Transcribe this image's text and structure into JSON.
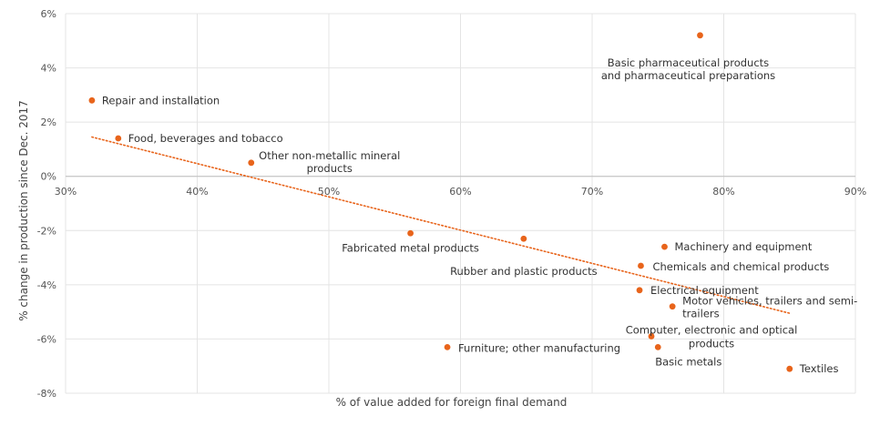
{
  "chart_data": {
    "type": "scatter",
    "xlabel": "% of value added  for foreign final demand",
    "ylabel": "% change in production since Dec. 2017",
    "xlim": [
      0.3,
      0.9
    ],
    "ylim": [
      -0.08,
      0.06
    ],
    "x_ticks": [
      0.3,
      0.4,
      0.5,
      0.6,
      0.7,
      0.8,
      0.9
    ],
    "x_tick_labels": [
      "30%",
      "40%",
      "50%",
      "60%",
      "70%",
      "80%",
      "90%"
    ],
    "y_ticks": [
      0.06,
      0.04,
      0.02,
      0.0,
      -0.02,
      -0.04,
      -0.06,
      -0.08
    ],
    "y_tick_labels": [
      "6%",
      "4%",
      "2%",
      "0%",
      "-2%",
      "-4%",
      "-6%",
      "-8%"
    ],
    "grid": "vertical and horizontal",
    "marker_color": "#e8641b",
    "trendline": {
      "type": "linear",
      "style": "dotted",
      "color": "#e8641b",
      "x_start": 0.32,
      "y_start": 0.0145,
      "x_end": 0.85,
      "y_end": -0.0505
    },
    "points": [
      {
        "name": "Repair and installation",
        "label_lines": [
          "Repair and installation"
        ],
        "x": 0.32,
        "y": 0.028
      },
      {
        "name": "Food, beverages and tobacco",
        "label_lines": [
          "Food, beverages and tobacco"
        ],
        "x": 0.34,
        "y": 0.014
      },
      {
        "name": "Other non-metallic mineral products",
        "label_lines": [
          "Other non-metallic mineral",
          "products"
        ],
        "x": 0.441,
        "y": 0.005
      },
      {
        "name": "Fabricated metal products",
        "label_lines": [
          "Fabricated metal products"
        ],
        "x": 0.562,
        "y": -0.021
      },
      {
        "name": "Rubber and plastic products",
        "label_lines": [
          "Rubber and plastic products"
        ],
        "x": 0.648,
        "y": -0.023
      },
      {
        "name": "Basic pharmaceutical products and pharmaceutical preparations",
        "label_lines": [
          "Basic pharmaceutical products",
          "and pharmaceutical preparations"
        ],
        "x": 0.782,
        "y": 0.052
      },
      {
        "name": "Machinery and equipment",
        "label_lines": [
          "Machinery and equipment"
        ],
        "x": 0.755,
        "y": -0.026
      },
      {
        "name": "Chemicals and chemical products",
        "label_lines": [
          "Chemicals and chemical products"
        ],
        "x": 0.737,
        "y": -0.033
      },
      {
        "name": "Electrical equipment",
        "label_lines": [
          "Electrical equipment"
        ],
        "x": 0.736,
        "y": -0.042
      },
      {
        "name": "Motor vehicles, trailers and semi-trailers",
        "label_lines": [
          "Motor vehicles, trailers and semi-",
          "trailers"
        ],
        "x": 0.761,
        "y": -0.048
      },
      {
        "name": "Computer, electronic and optical products",
        "label_lines": [
          "Computer, electronic and optical",
          "products"
        ],
        "x": 0.745,
        "y": -0.059
      },
      {
        "name": "Basic metals",
        "label_lines": [
          "Basic metals"
        ],
        "x": 0.75,
        "y": -0.063
      },
      {
        "name": "Furniture; other manufacturing",
        "label_lines": [
          "Furniture; other manufacturing"
        ],
        "x": 0.59,
        "y": -0.063
      },
      {
        "name": "Textiles",
        "label_lines": [
          "Textiles"
        ],
        "x": 0.85,
        "y": -0.071
      }
    ]
  }
}
